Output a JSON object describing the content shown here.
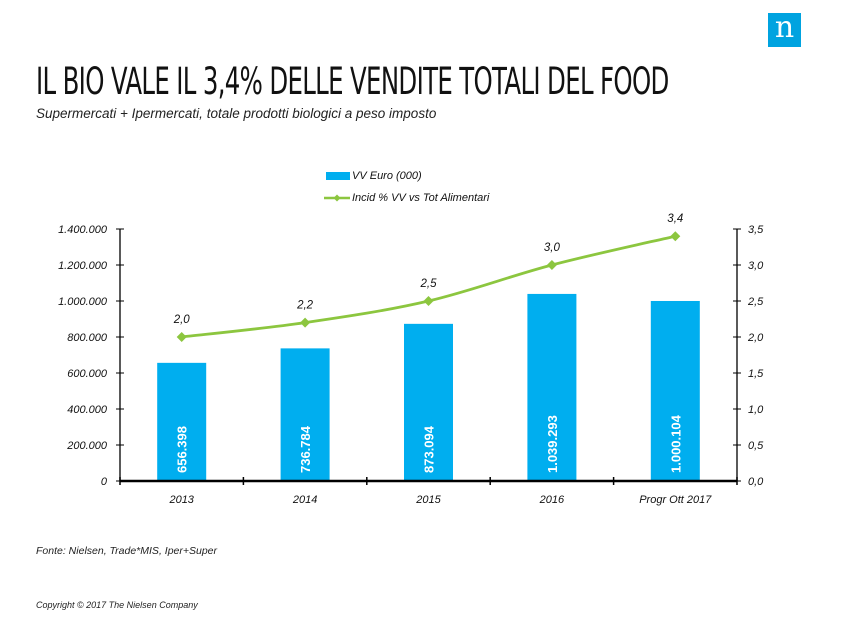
{
  "header": {
    "logo_text": "n",
    "title": "IL BIO VALE IL 3,4% DELLE VENDITE TOTALI DEL FOOD",
    "subtitle": "Supermercati + Ipermercati, totale prodotti biologici a peso imposto"
  },
  "legend": {
    "bar_label": "VV Euro (000)",
    "line_label": "Incid % VV vs Tot Alimentari"
  },
  "footer": {
    "source": "Fonte: Nielsen, Trade*MIS, Iper+Super",
    "copyright": "Copyright © 2017 The Nielsen Company"
  },
  "colors": {
    "bar": "#00aeef",
    "line": "#8cc63f",
    "logo": "#00a3e0"
  },
  "chart_data": {
    "type": "bar+line",
    "title": "IL BIO VALE IL 3,4% DELLE VENDITE TOTALI DEL FOOD",
    "categories": [
      "2013",
      "2014",
      "2015",
      "2016",
      "Progr Ott 2017"
    ],
    "series": [
      {
        "name": "VV Euro (000)",
        "type": "bar",
        "axis": "left",
        "values": [
          656398,
          736784,
          873094,
          1039293,
          1000104
        ],
        "labels": [
          "656.398",
          "736.784",
          "873.094",
          "1.039.293",
          "1.000.104"
        ]
      },
      {
        "name": "Incid % VV vs Tot Alimentari",
        "type": "line",
        "axis": "right",
        "values": [
          2.0,
          2.2,
          2.5,
          3.0,
          3.4
        ],
        "labels": [
          "2,0",
          "2,2",
          "2,5",
          "3,0",
          "3,4"
        ]
      }
    ],
    "left_axis": {
      "ylim": [
        0,
        1400000
      ],
      "ticks": [
        0,
        200000,
        400000,
        600000,
        800000,
        1000000,
        1200000,
        1400000
      ],
      "tick_labels": [
        "0",
        "200.000",
        "400.000",
        "600.000",
        "800.000",
        "1.000.000",
        "1.200.000",
        "1.400.000"
      ]
    },
    "right_axis": {
      "ylim": [
        0,
        3.5
      ],
      "ticks": [
        0,
        0.5,
        1.0,
        1.5,
        2.0,
        2.5,
        3.0,
        3.5
      ],
      "tick_labels": [
        "0,0",
        "0,5",
        "1,0",
        "1,5",
        "2,0",
        "2,5",
        "3,0",
        "3,5"
      ]
    },
    "xlabel": "",
    "ylabel": "",
    "grid": false,
    "legend_position": "top-center"
  }
}
